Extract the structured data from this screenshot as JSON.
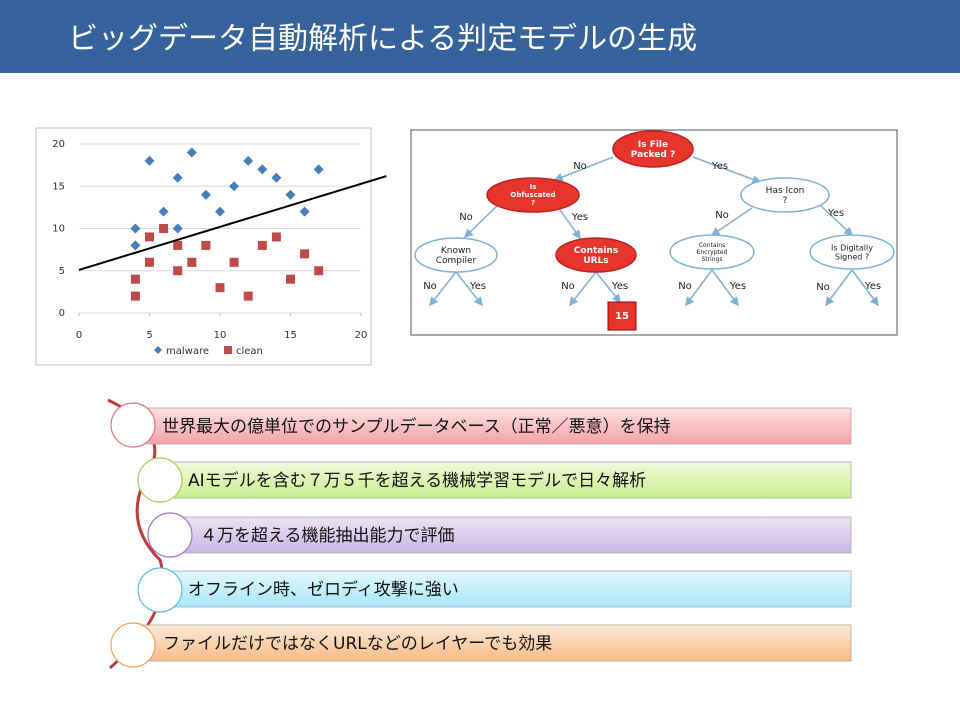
{
  "title": "ビッグデータ自動解析による判定モデルの生成",
  "chart_data": {
    "type": "scatter",
    "xlim": [
      0,
      20
    ],
    "ylim": [
      0,
      20
    ],
    "xticks": [
      0,
      5,
      10,
      15,
      20
    ],
    "yticks": [
      0,
      5,
      10,
      15,
      20
    ],
    "grid": true,
    "series": [
      {
        "name": "malware",
        "color": "#4a7ebb",
        "marker": "diamond",
        "x": [
          4,
          4,
          5,
          6,
          7,
          7,
          8,
          9,
          10,
          11,
          12,
          13,
          14,
          15,
          16,
          17
        ],
        "values": [
          10,
          8,
          18,
          12,
          16,
          10,
          19,
          14,
          12,
          15,
          18,
          17,
          16,
          14,
          12,
          17
        ]
      },
      {
        "name": "clean",
        "color": "#be4b48",
        "marker": "square",
        "x": [
          4,
          4,
          5,
          5,
          6,
          7,
          7,
          8,
          9,
          10,
          11,
          12,
          13,
          14,
          15,
          16,
          17
        ],
        "values": [
          4,
          2,
          9,
          6,
          10,
          8,
          5,
          6,
          8,
          3,
          6,
          2,
          8,
          9,
          4,
          7,
          5
        ]
      }
    ],
    "boundary": {
      "x": [
        0,
        21.8
      ],
      "y": [
        5.1,
        16.2
      ]
    }
  },
  "tree": {
    "nodes": [
      {
        "lines": [
          "Is File",
          "Packed ?"
        ]
      },
      {
        "lines": [
          "Is",
          "Obfuscated",
          "?"
        ]
      },
      {
        "lines": [
          "Has Icon",
          "?"
        ]
      },
      {
        "lines": [
          "Known",
          "Compiler"
        ]
      },
      {
        "lines": [
          "Contains",
          "URLs"
        ]
      },
      {
        "lines": [
          "Contains",
          "Encrypted",
          "Strings"
        ]
      },
      {
        "lines": [
          "Is Digitally",
          "Signed ?"
        ]
      },
      {
        "lines": [
          "15"
        ]
      }
    ],
    "edges": [
      "No",
      "Yes",
      "No",
      "Yes",
      "No",
      "Yes",
      "No",
      "Yes",
      "No",
      "Yes",
      "No",
      "Yes",
      "No",
      "Yes"
    ]
  },
  "items": [
    "世界最大の億単位でのサンプルデータベース（正常／悪意）を保持",
    "AIモデルを含む７万５千を超える機械学習モデルで日々解析",
    "４万を超える機能抽出能力で評価",
    "オフライン時、ゼロディ攻撃に強い",
    "ファイルだけではなくURLなどのレイヤーでも効果"
  ]
}
